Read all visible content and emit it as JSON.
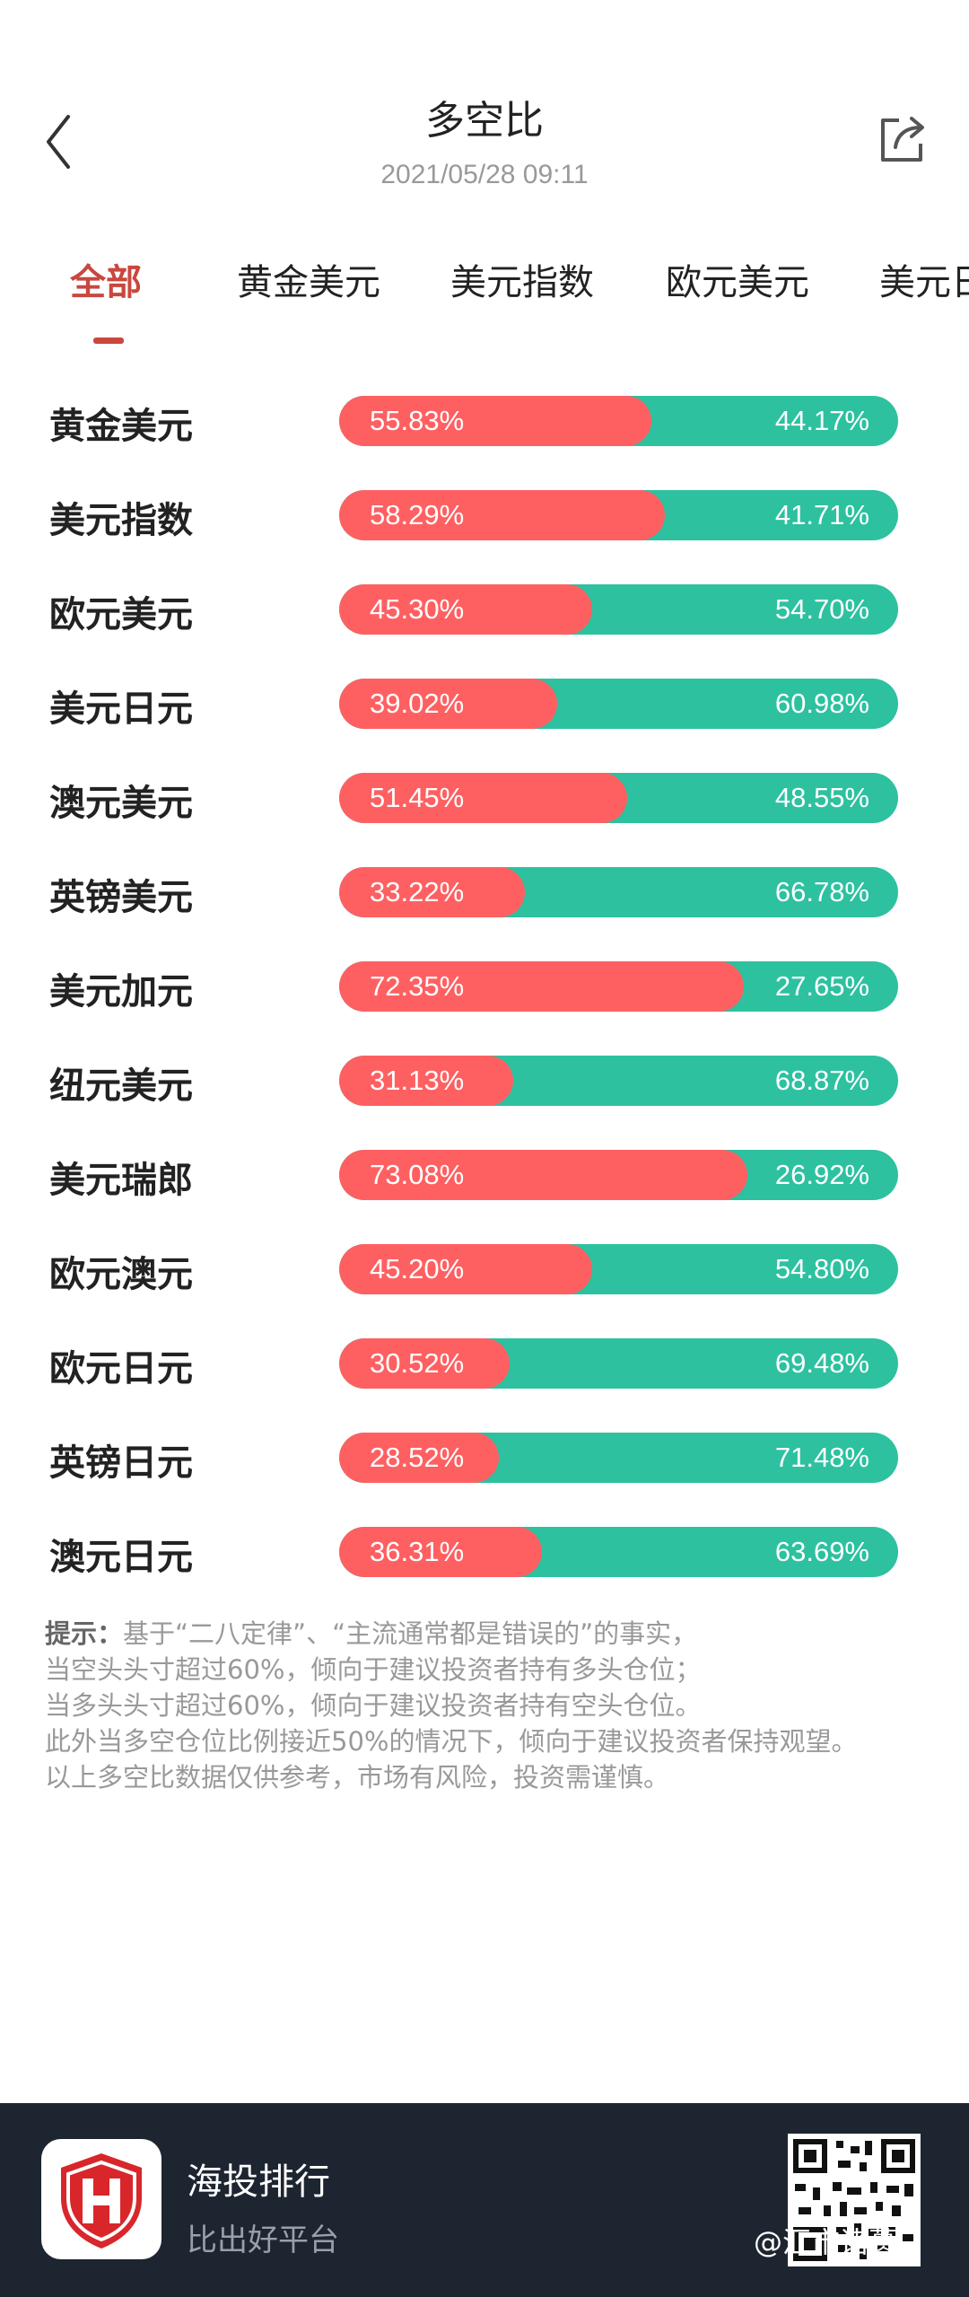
{
  "header": {
    "title": "多空比",
    "datetime": "2021/05/28 09:11"
  },
  "tabs": [
    {
      "label": "全部",
      "active": true
    },
    {
      "label": "黄金美元",
      "active": false
    },
    {
      "label": "美元指数",
      "active": false
    },
    {
      "label": "欧元美元",
      "active": false
    },
    {
      "label": "美元日",
      "active": false
    }
  ],
  "colors": {
    "long": "#fe6062",
    "short": "#2dc1a0",
    "accent": "#c9473f"
  },
  "ratios": [
    {
      "name": "黄金美元",
      "long": "55.83%",
      "short": "44.17%",
      "long_pct": 55.83
    },
    {
      "name": "美元指数",
      "long": "58.29%",
      "short": "41.71%",
      "long_pct": 58.29
    },
    {
      "name": "欧元美元",
      "long": "45.30%",
      "short": "54.70%",
      "long_pct": 45.3
    },
    {
      "name": "美元日元",
      "long": "39.02%",
      "short": "60.98%",
      "long_pct": 39.02
    },
    {
      "name": "澳元美元",
      "long": "51.45%",
      "short": "48.55%",
      "long_pct": 51.45
    },
    {
      "name": "英镑美元",
      "long": "33.22%",
      "short": "66.78%",
      "long_pct": 33.22
    },
    {
      "name": "美元加元",
      "long": "72.35%",
      "short": "27.65%",
      "long_pct": 72.35
    },
    {
      "name": "纽元美元",
      "long": "31.13%",
      "short": "68.87%",
      "long_pct": 31.13
    },
    {
      "name": "美元瑞郎",
      "long": "73.08%",
      "short": "26.92%",
      "long_pct": 73.08
    },
    {
      "name": "欧元澳元",
      "long": "45.20%",
      "short": "54.80%",
      "long_pct": 45.2
    },
    {
      "name": "欧元日元",
      "long": "30.52%",
      "short": "69.48%",
      "long_pct": 30.52
    },
    {
      "name": "英镑日元",
      "long": "28.52%",
      "short": "71.48%",
      "long_pct": 28.52
    },
    {
      "name": "澳元日元",
      "long": "36.31%",
      "short": "63.69%",
      "long_pct": 36.31
    }
  ],
  "tips": {
    "label": "提示：",
    "line1": "基于“二八定律”、“主流通常都是错误的”的事实，",
    "line2": "当空头头寸超过60%，倾向于建议投资者持有多头仓位；",
    "line3": "当多头头寸超过60%，倾向于建议投资者持有空头仓位。",
    "line4": "此外当多空仓位比例接近50%的情况下，倾向于建议投资者保持观望。",
    "line5": "以上多空比数据仅供参考，市场有风险，投资需谨慎。"
  },
  "footer": {
    "app_name": "海投排行",
    "slogan": "比出好平台",
    "watermark": "@汇市诸葛"
  }
}
